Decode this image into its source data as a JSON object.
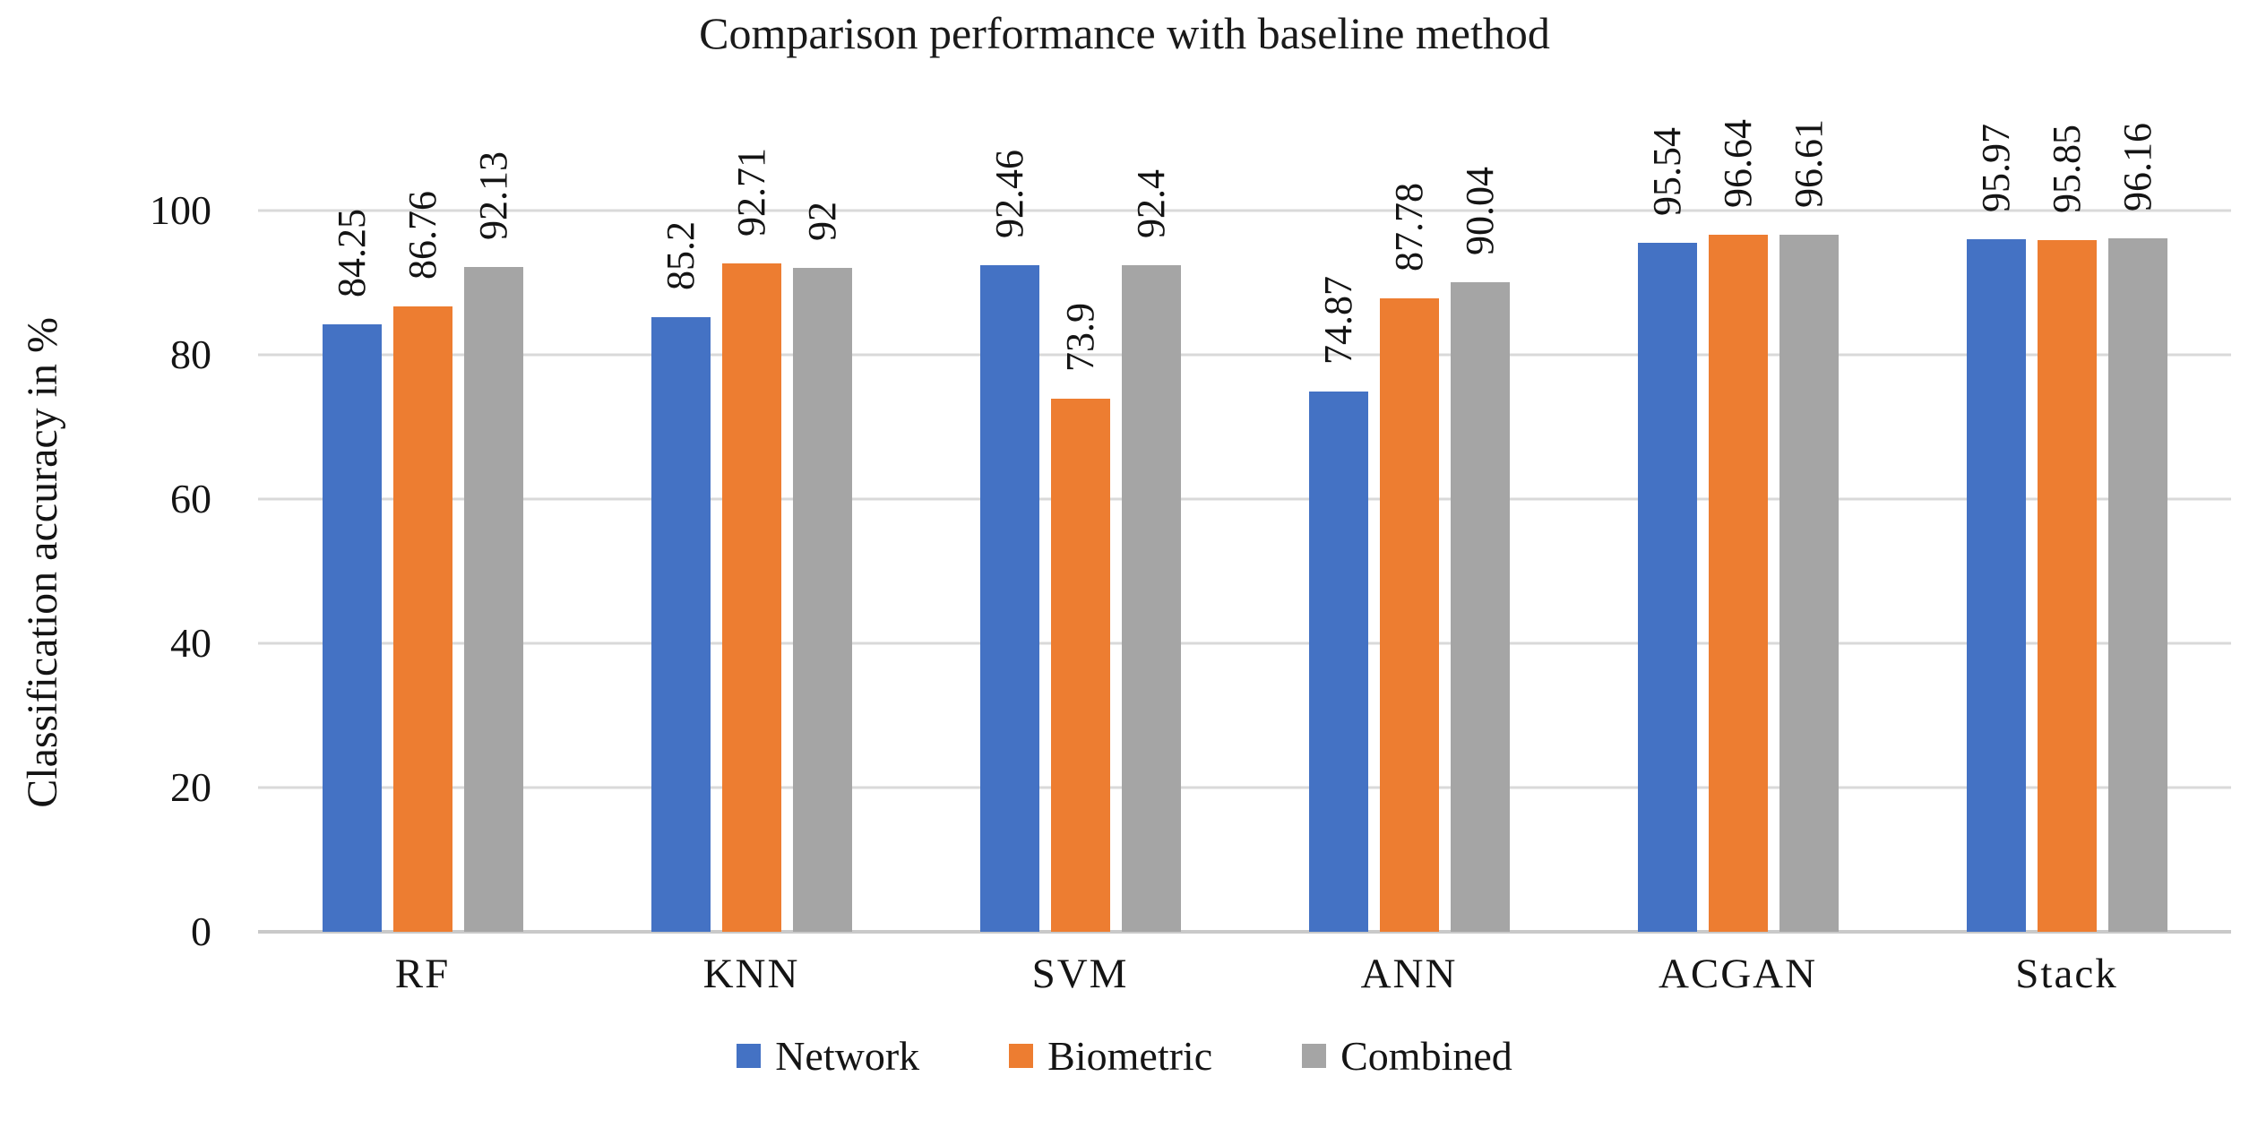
{
  "title": "Comparison performance with baseline method",
  "y_axis": {
    "label": "Classification accuracy in %",
    "ticks": [
      0,
      20,
      40,
      60,
      80,
      100
    ],
    "max": 100
  },
  "legend": {
    "items": [
      {
        "label": "Network",
        "color": "#4472C4"
      },
      {
        "label": "Biometric",
        "color": "#ED7D31"
      },
      {
        "label": "Combined",
        "color": "#A5A5A5"
      }
    ]
  },
  "colors": {
    "network_blue": "#4472C4",
    "biometric_orange": "#ED7D31",
    "combined_gray": "#A5A5A5",
    "gridline": "#D9D9D9",
    "text": "#141414"
  },
  "chart_data": {
    "type": "bar",
    "title": "Comparison performance with baseline method",
    "categories": [
      "RF",
      "KNN",
      "SVM",
      "ANN",
      "ACGAN",
      "Stack"
    ],
    "series": [
      {
        "name": "Network",
        "color": "#4472C4",
        "values": [
          84.25,
          85.2,
          92.46,
          74.87,
          95.54,
          95.97
        ],
        "labels": [
          "84.25",
          "85.2",
          "92.46",
          "74.87",
          "95.54",
          "95.97"
        ]
      },
      {
        "name": "Biometric",
        "color": "#ED7D31",
        "values": [
          86.76,
          92.71,
          73.9,
          87.78,
          96.64,
          95.85
        ],
        "labels": [
          "86.76",
          "92.71",
          "73.9",
          "87.78",
          "96.64",
          "95.85"
        ]
      },
      {
        "name": "Combined",
        "color": "#A5A5A5",
        "values": [
          92.13,
          92,
          92.4,
          90.04,
          96.61,
          96.16
        ],
        "labels": [
          "92.13",
          "92",
          "92.4",
          "90.04",
          "96.61",
          "96.16"
        ]
      }
    ],
    "xlabel": "",
    "ylabel": "Classification accuracy in %",
    "ylim": [
      0,
      100
    ],
    "grid": true,
    "grid_interval": 20,
    "legend_position": "bottom",
    "bar_value_labels_rotated": true
  }
}
